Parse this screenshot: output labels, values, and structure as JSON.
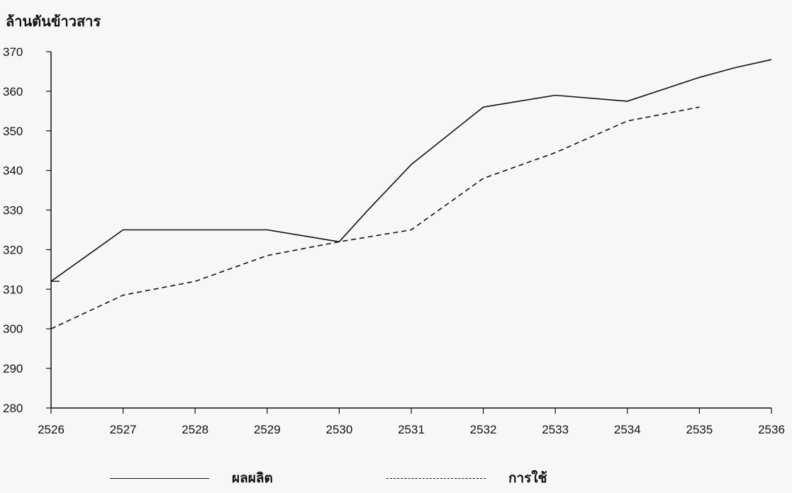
{
  "chart_data": {
    "type": "line",
    "ylabel": "ล้านตันข้าวสาร",
    "x": [
      2526,
      2527,
      2528,
      2529,
      2530,
      2531,
      2532,
      2533,
      2534,
      2535,
      2536
    ],
    "ylim": [
      280,
      370
    ],
    "yticks": [
      280,
      290,
      300,
      310,
      320,
      330,
      340,
      350,
      360,
      370
    ],
    "grid": false,
    "legend_position": "bottom",
    "series": [
      {
        "name": "ผลผลิต",
        "style": "solid",
        "color": "#111111",
        "points": [
          [
            2526,
            312
          ],
          [
            2527,
            325
          ],
          [
            2528,
            325
          ],
          [
            2529,
            325
          ],
          [
            2530,
            322
          ],
          [
            2530.4,
            330
          ],
          [
            2531,
            341.5
          ],
          [
            2532,
            356
          ],
          [
            2533,
            359
          ],
          [
            2534,
            357.5
          ],
          [
            2535,
            363.5
          ],
          [
            2535.5,
            366
          ],
          [
            2536,
            368
          ]
        ]
      },
      {
        "name": "การใช้",
        "style": "dashed",
        "color": "#111111",
        "points": [
          [
            2526,
            300
          ],
          [
            2527,
            308.5
          ],
          [
            2528,
            312
          ],
          [
            2529,
            318.5
          ],
          [
            2530,
            322
          ],
          [
            2531,
            325
          ],
          [
            2532,
            338
          ],
          [
            2533,
            344.5
          ],
          [
            2534,
            352.5
          ],
          [
            2535,
            356
          ]
        ]
      }
    ]
  }
}
